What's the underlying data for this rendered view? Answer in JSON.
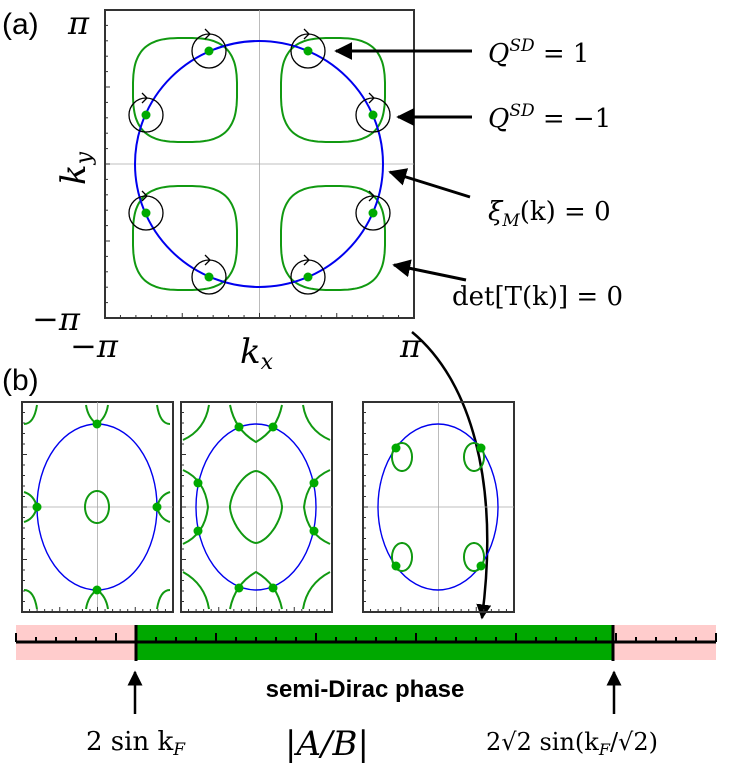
{
  "panel_a": {
    "label": "(a)",
    "y_top": "π",
    "y_bottom": "−π",
    "x_left": "−π",
    "x_right": "π",
    "xlabel": "k",
    "xlabel_sub": "x",
    "ylabel": "k",
    "ylabel_sub": "y",
    "annotations": {
      "q_pos": {
        "base": "Q",
        "sup": "SD",
        "rest": " = 1"
      },
      "q_neg": {
        "base": "Q",
        "sup": "SD",
        "rest": " = −1"
      },
      "xi": {
        "base": "ξ",
        "sub": "M",
        "rest": "(k) = 0"
      },
      "det": {
        "text": "det[T(k)] = 0"
      }
    }
  },
  "panel_b": {
    "label": "(b)"
  },
  "bar": {
    "phase_label": "semi-Dirac phase",
    "left_marker": "2 sin k",
    "left_marker_sub": "F",
    "axis_label": "|A/B|",
    "right_marker": "2√2 sin(k",
    "right_marker_sub": "F",
    "right_marker_tail": "/√2)"
  },
  "colors": {
    "blue": "#0000ee",
    "green": "#119911",
    "dot": "#00aa00",
    "phase": "#00a800",
    "outside": "#ffcccc"
  }
}
